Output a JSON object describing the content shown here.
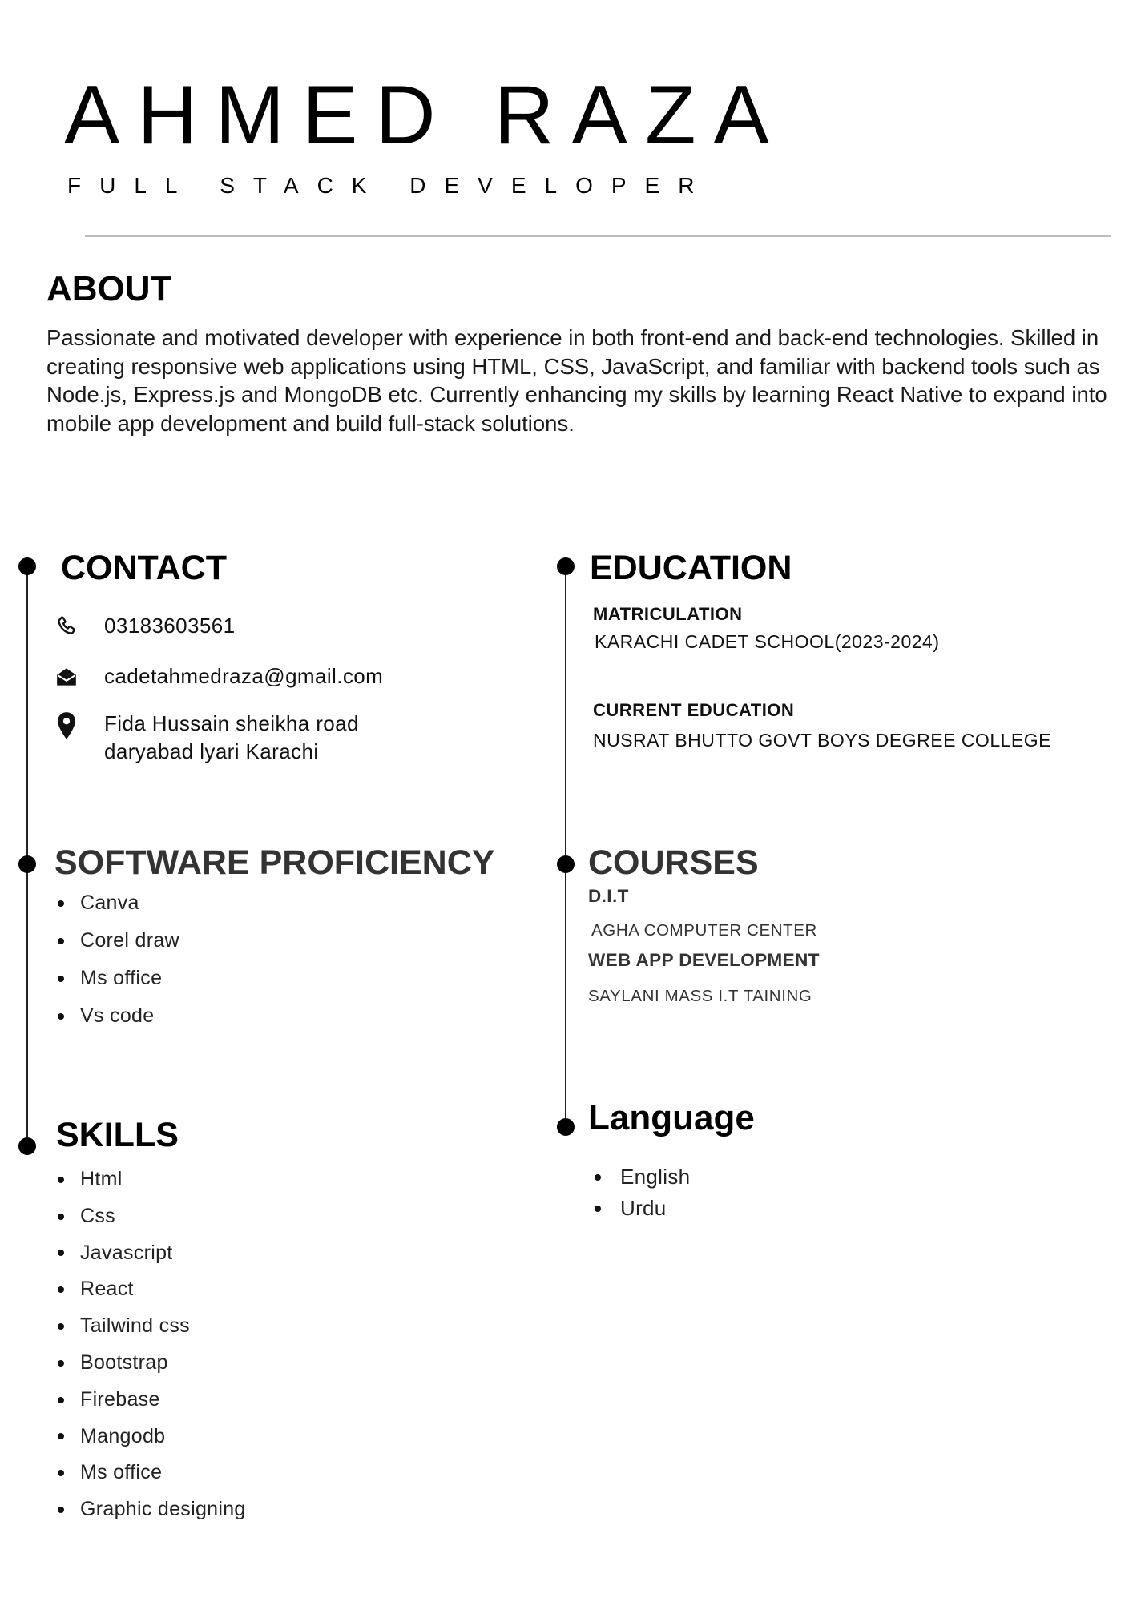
{
  "header": {
    "name": "AHMED RAZA",
    "role": "FULL STACK DEVELOPER"
  },
  "about": {
    "heading": "ABOUT",
    "text": "Passionate and motivated developer with experience in both front-end and back-end technologies. Skilled in creating responsive web applications using HTML, CSS, JavaScript, and familiar with backend tools such as Node.js, Express.js and MongoDB etc. Currently enhancing my skills by learning React Native to expand into mobile app development and build full-stack solutions."
  },
  "contact": {
    "heading": "CONTACT",
    "phone": "03183603561",
    "email": "cadetahmedraza@gmail.com",
    "address_line1": "Fida Hussain sheikha road",
    "address_line2": "daryabad lyari Karachi",
    "icons": [
      "phone-icon",
      "envelope-icon",
      "location-pin-icon"
    ]
  },
  "education": {
    "heading": "EDUCATION",
    "items": [
      {
        "label": "MATRICULATION",
        "value": "KARACHI CADET SCHOOL(2023-2024)"
      },
      {
        "label": "CURRENT EDUCATION",
        "value": "NUSRAT BHUTTO GOVT BOYS DEGREE COLLEGE"
      }
    ]
  },
  "software": {
    "heading": "SOFTWARE PROFICIENCY",
    "items": [
      "Canva",
      "Corel draw",
      "Ms office",
      "Vs code"
    ]
  },
  "courses": {
    "heading": "COURSES",
    "items": [
      {
        "label": "D.I.T",
        "value": "AGHA COMPUTER CENTER"
      },
      {
        "label": "WEB APP DEVELOPMENT",
        "value": "SAYLANI MASS I.T TAINING"
      }
    ]
  },
  "skills": {
    "heading": "SKILLS",
    "items": [
      "Html",
      "Css",
      "Javascript",
      "React",
      "Tailwind css",
      "Bootstrap",
      "Firebase",
      "Mangodb",
      "Ms office",
      "Graphic designing"
    ]
  },
  "language": {
    "heading": "Language",
    "items": [
      "English",
      "Urdu"
    ]
  },
  "colors": {
    "text": "#111111",
    "heading_grey": "#333333",
    "rule": "#bdbdbd",
    "timeline": "#222222"
  }
}
